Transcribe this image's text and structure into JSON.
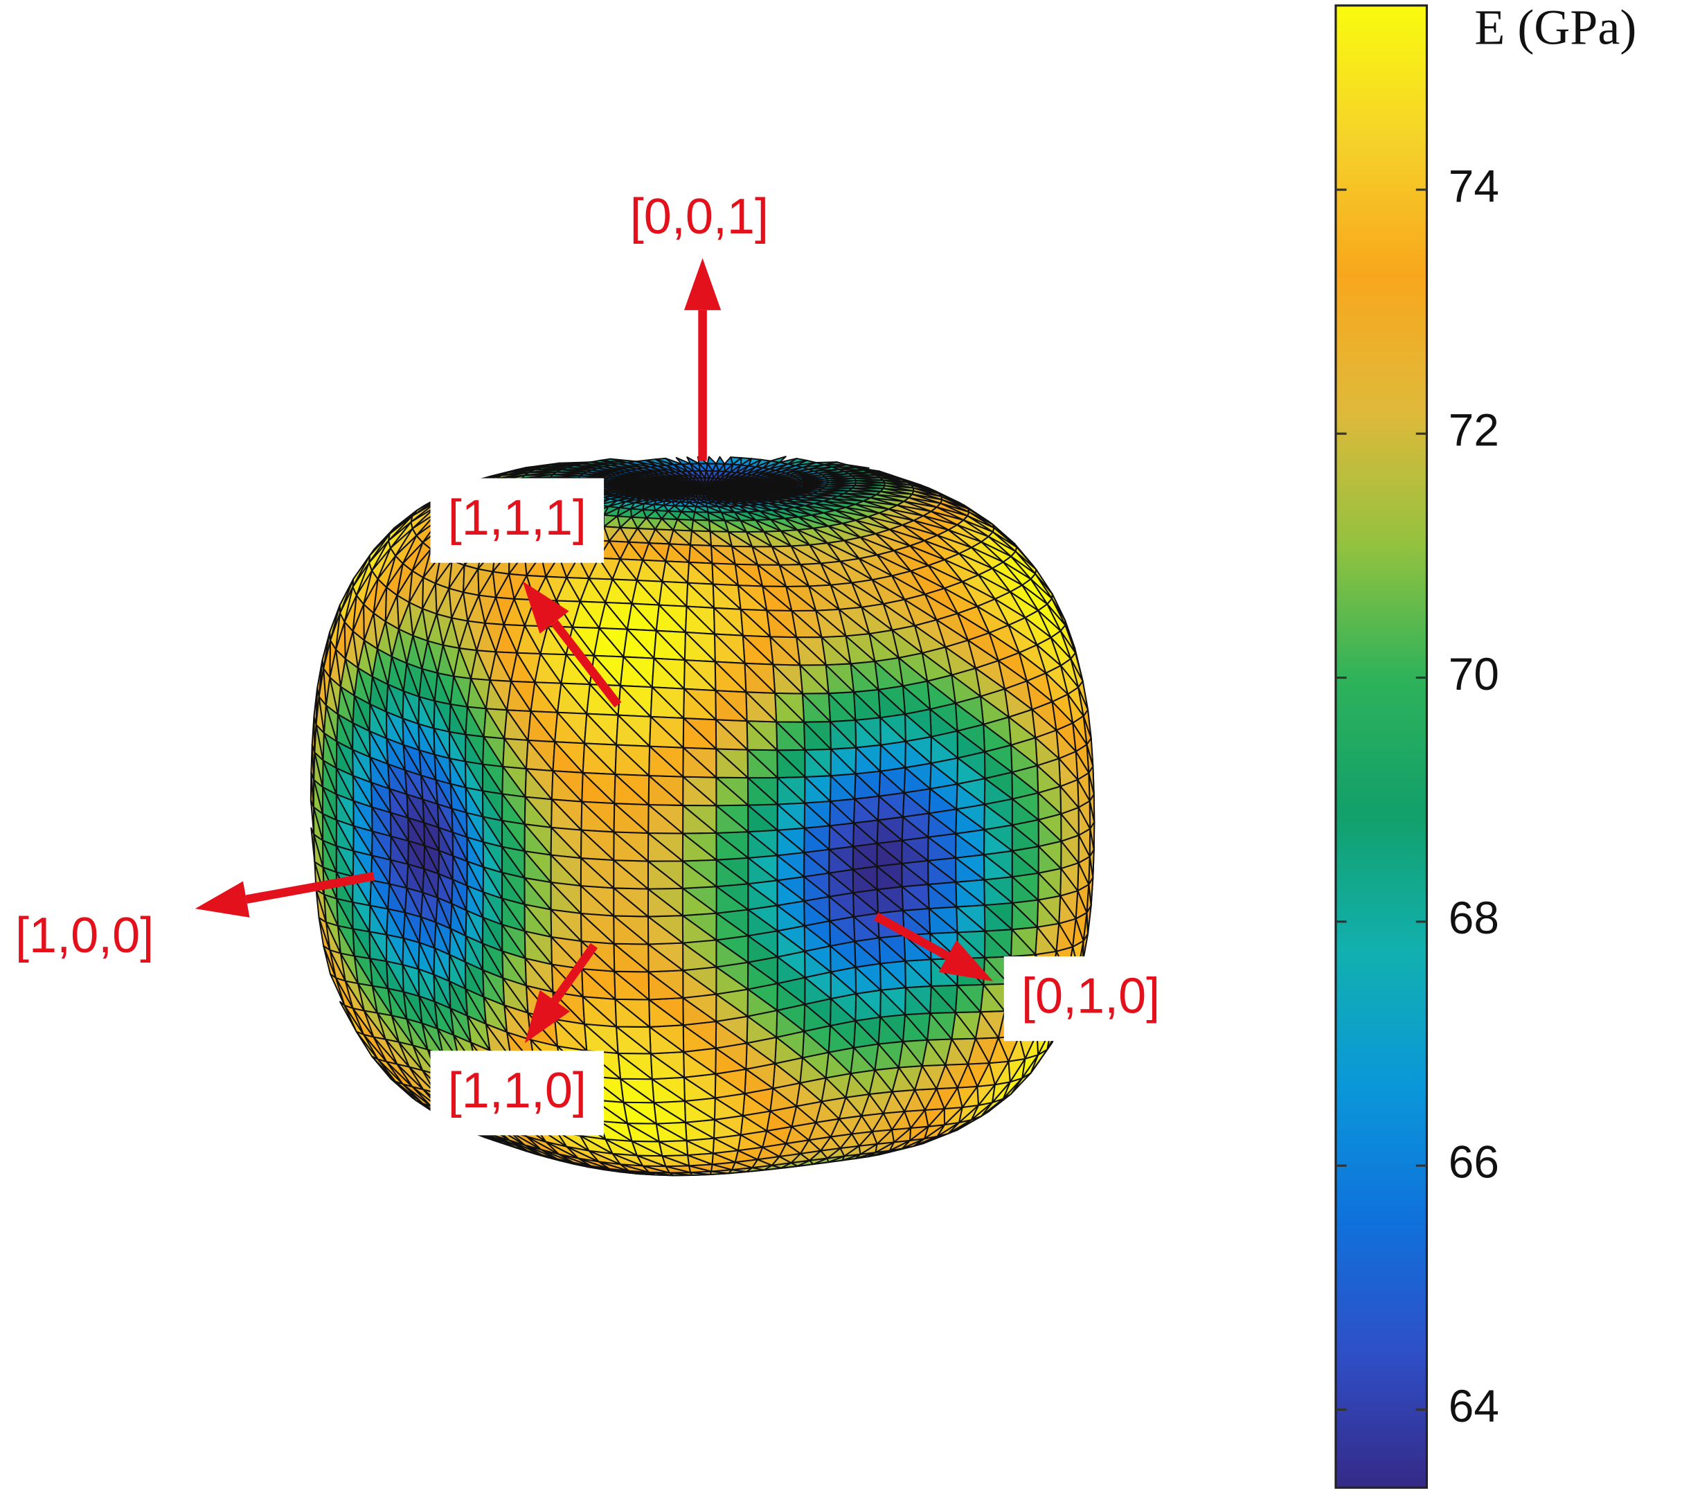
{
  "chart_data": {
    "type": "surface",
    "colorbar_label": "E (GPa)",
    "clim": [
      63.36,
      75.51
    ],
    "cticks": [
      64,
      66,
      68,
      70,
      72,
      74
    ],
    "colormap": [
      "#352a87",
      "#2f4fc7",
      "#0f72dc",
      "#0a98d8",
      "#12b0ae",
      "#12a06a",
      "#2eb25a",
      "#93c23f",
      "#e0b93a",
      "#f8a71c",
      "#f5d22a",
      "#f9fb0e"
    ],
    "annotations": [
      {
        "text": "[0,0,1]"
      },
      {
        "text": "[1,1,1]"
      },
      {
        "text": "[1,0,0]"
      },
      {
        "text": "[0,1,0]"
      },
      {
        "text": "[1,1,0]"
      }
    ],
    "annotation_color": "#e3111b"
  }
}
